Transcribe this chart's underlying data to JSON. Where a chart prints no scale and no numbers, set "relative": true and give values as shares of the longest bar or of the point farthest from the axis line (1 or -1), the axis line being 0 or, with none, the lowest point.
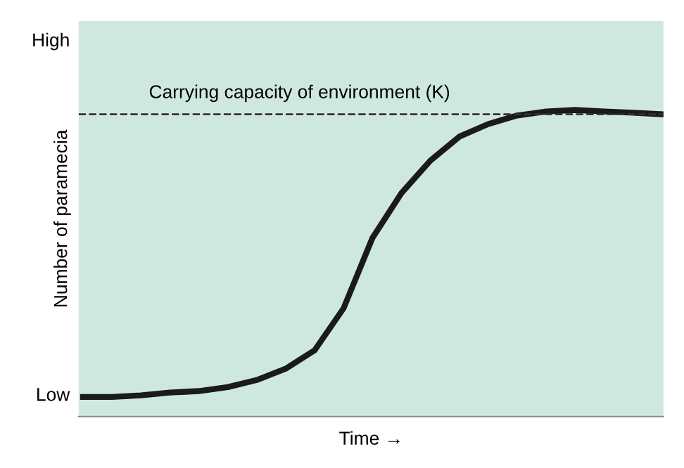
{
  "chart_data": {
    "type": "line",
    "relative": true,
    "xlabel": "Time →",
    "ylabel": "Number of paramecia",
    "categories": [
      null,
      null,
      null,
      null,
      null,
      null,
      null,
      null,
      null,
      null,
      null,
      null,
      null,
      null,
      null,
      null,
      null,
      null,
      null,
      null,
      null
    ],
    "series": [
      {
        "color": "#1a1a1a",
        "values": [
          0.064,
          0.064,
          0.069,
          0.078,
          0.083,
          0.096,
          0.119,
          0.156,
          0.216,
          0.353,
          0.583,
          0.729,
          0.835,
          0.913,
          0.954,
          0.982,
          0.995,
          1,
          0.995,
          0.991,
          0.986
        ]
      }
    ],
    "ref_lines": [
      {
        "axis": "y",
        "value": 0.986,
        "label": "Carrying capacity of environment (K)",
        "color": "#333333",
        "line_style": "dashed"
      }
    ],
    "annotations": [
      "High",
      "Low"
    ],
    "grid": false,
    "legend": false,
    "marker": "none",
    "line_style": "solid"
  }
}
